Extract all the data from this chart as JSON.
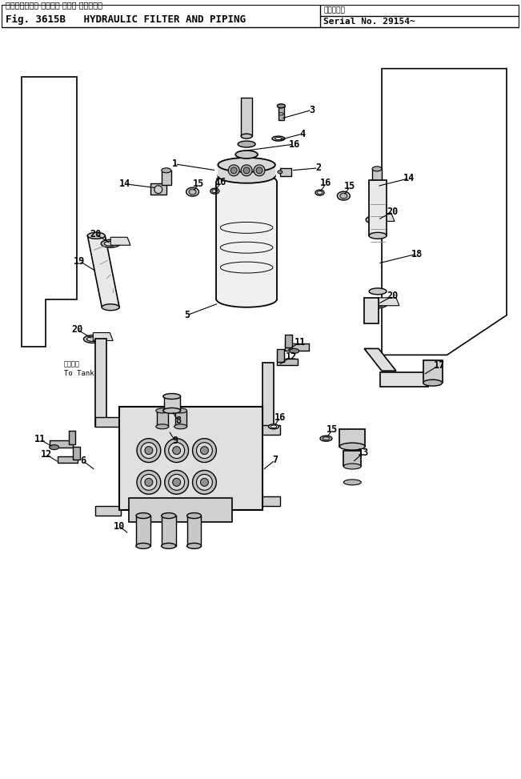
{
  "title_jp": "ハイドロリック フィルタ および パイピング",
  "title_en": "Fig. 3615B   HYDRAULIC FILTER AND PIPING",
  "serial": "Serial No. 29154~",
  "serial_label": "再備品機械",
  "bg_color": "#ffffff",
  "line_color": "#000000",
  "fig_width": 6.51,
  "fig_height": 9.73,
  "dpi": 100
}
